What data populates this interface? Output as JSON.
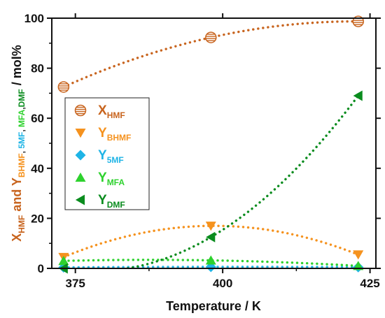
{
  "chart_data": {
    "type": "scatter",
    "title": "",
    "xlabel": "Temperature / K",
    "ylabel_parts": [
      {
        "text": "X",
        "sub": false,
        "color": "#c8641e"
      },
      {
        "text": "HMF",
        "sub": true,
        "color": "#c8641e"
      },
      {
        "text": " and Y",
        "sub": false,
        "color": "#c8641e"
      },
      {
        "text": "BHMF",
        "sub": true,
        "color": "#f5921e"
      },
      {
        "text": ", ",
        "sub": true,
        "color": "#111111"
      },
      {
        "text": "5MF",
        "sub": true,
        "color": "#1eb4e6"
      },
      {
        "text": ", ",
        "sub": true,
        "color": "#111111"
      },
      {
        "text": "MFA",
        "sub": true,
        "color": "#2ed22e"
      },
      {
        "text": ",",
        "sub": true,
        "color": "#111111"
      },
      {
        "text": "DMF",
        "sub": true,
        "color": "#0a8c1e"
      },
      {
        "text": " / mol%",
        "sub": false,
        "color": "#111111"
      }
    ],
    "xlim": [
      371,
      426
    ],
    "ylim": [
      0,
      100
    ],
    "xticks": [
      375,
      400,
      425
    ],
    "yticks": [
      0,
      20,
      40,
      60,
      80,
      100
    ],
    "grid": false,
    "legend_position": "left-middle",
    "series": [
      {
        "name": "X",
        "sub": "HMF",
        "color": "#c8641e",
        "marker": "circle-hatched",
        "x": [
          373,
          398,
          423
        ],
        "y": [
          72.5,
          92.3,
          98.7
        ]
      },
      {
        "name": "Y",
        "sub": "BHMF",
        "color": "#f5921e",
        "marker": "triangle-down",
        "x": [
          373,
          398,
          423
        ],
        "y": [
          4.5,
          17.0,
          5.5
        ]
      },
      {
        "name": "Y",
        "sub": "5MF",
        "color": "#1eb4e6",
        "marker": "diamond",
        "x": [
          373,
          398,
          423
        ],
        "y": [
          0.4,
          0.6,
          0.5
        ]
      },
      {
        "name": "Y",
        "sub": "MFA",
        "color": "#2ed22e",
        "marker": "triangle-up",
        "x": [
          373,
          398,
          423
        ],
        "y": [
          3.0,
          3.2,
          1.0
        ]
      },
      {
        "name": "Y",
        "sub": "DMF",
        "color": "#0a8c1e",
        "marker": "triangle-left",
        "x": [
          373,
          398,
          423
        ],
        "y": [
          0.0,
          12.5,
          69.0
        ]
      }
    ]
  }
}
